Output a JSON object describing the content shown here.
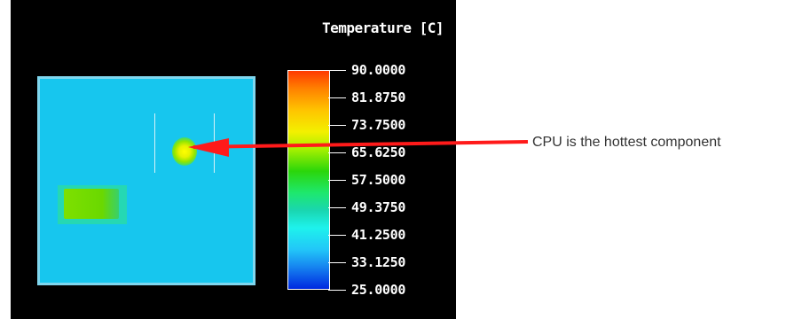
{
  "legend": {
    "title": "Temperature [C]",
    "values": [
      "90.0000",
      "81.8750",
      "73.7500",
      "65.6250",
      "57.5000",
      "49.3750",
      "41.2500",
      "33.1250",
      "25.0000"
    ]
  },
  "annotation": {
    "text": "CPU is the hottest component",
    "arrow_color": "#ff1a1a"
  },
  "colors": {
    "board": "#17c6ee",
    "background": "#000000",
    "hotspot": "#ffff00",
    "component": "#7ee000"
  }
}
